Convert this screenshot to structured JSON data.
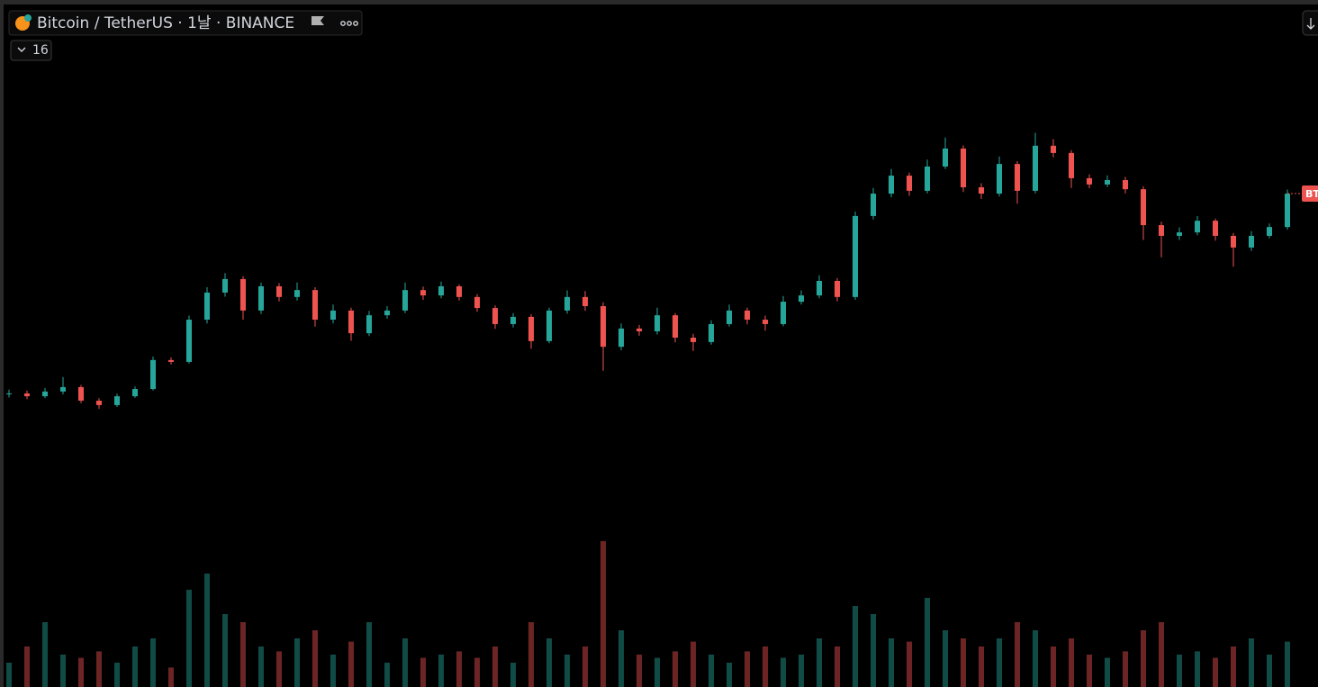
{
  "header": {
    "title": "Bitcoin / TetherUS · 1날 · BINANCE",
    "indicator_count": "16",
    "price_tag": "BT"
  },
  "chart_data": {
    "type": "candlestick",
    "up_color": "#26a69a",
    "down_color": "#ef5350",
    "ylim": [
      0,
      100
    ],
    "volume_ylim": [
      0,
      100
    ],
    "open": [
      12.0,
      12.3,
      11.4,
      12.9,
      14.3,
      10,
      8.6,
      11.4,
      13.7,
      22.9,
      22.3,
      35.7,
      44.3,
      48.6,
      38.6,
      46.3,
      42.9,
      45.1,
      35.7,
      38.6,
      31.4,
      37.1,
      38.6,
      45.1,
      43.4,
      46.3,
      42.9,
      39.4,
      34.3,
      36.6,
      28.9,
      38.6,
      42.9,
      40,
      27.1,
      32.9,
      32,
      37.1,
      30,
      28.6,
      34.3,
      38.6,
      35.7,
      34.3,
      41.4,
      43.4,
      48,
      42.9,
      68.6,
      75.7,
      81.4,
      76.6,
      84.3,
      90,
      77.7,
      75.7,
      85.1,
      76.6,
      90.9,
      88.6,
      80.6,
      78.6,
      80,
      77.1,
      65.7,
      62.3,
      63.4,
      67.1,
      62.3,
      58.6,
      62.3,
      65.1
    ],
    "high": [
      13.5,
      13.2,
      14,
      17.5,
      15,
      10.8,
      12.2,
      14.5,
      24,
      23.8,
      37,
      46,
      50.5,
      49.5,
      47.5,
      47.3,
      47.5,
      46,
      40.5,
      39.5,
      38.5,
      40,
      47.5,
      46.2,
      47.8,
      46.9,
      43.8,
      40.2,
      37.8,
      37.4,
      39.5,
      45,
      44.8,
      41.2,
      34.5,
      34,
      39.5,
      37.8,
      31.2,
      35.5,
      40.5,
      39.5,
      37,
      43.2,
      45,
      49.8,
      48.9,
      70,
      77.5,
      83.5,
      82.4,
      86.5,
      93.5,
      91,
      79,
      87.5,
      86,
      95,
      93,
      89.5,
      81.8,
      81.5,
      81,
      78,
      66.8,
      65,
      68.6,
      67.8,
      63.2,
      63.8,
      66.2,
      77
    ],
    "low": [
      11,
      10.5,
      10.8,
      12,
      9.2,
      7.4,
      8,
      10.9,
      13.2,
      21.5,
      21.8,
      34.5,
      43,
      35.7,
      37.5,
      41.5,
      41.8,
      33.5,
      34.5,
      29,
      30.5,
      36,
      37.8,
      42,
      42.5,
      41.8,
      38.2,
      32.8,
      33.2,
      26.5,
      28.2,
      37.6,
      38.5,
      19.5,
      26,
      30.6,
      31,
      28.5,
      25.8,
      27.8,
      33.5,
      34.2,
      32.2,
      33.6,
      40.5,
      42.5,
      41.5,
      42,
      67.5,
      74.5,
      75,
      75.8,
      83.5,
      76.2,
      74,
      74.8,
      72.5,
      75.8,
      87.2,
      77.5,
      77.4,
      77.8,
      75.8,
      61,
      55.5,
      61,
      62.5,
      60.8,
      52.5,
      57.5,
      61.5,
      64.3
    ],
    "close": [
      12.3,
      11.4,
      12.9,
      14.3,
      10,
      8.6,
      11.4,
      13.7,
      22.9,
      22.3,
      35.7,
      44.3,
      48.6,
      38.6,
      46.3,
      42.9,
      45.1,
      35.7,
      38.6,
      31.4,
      37.1,
      38.6,
      45.1,
      43.4,
      46.3,
      42.9,
      39.4,
      34.3,
      36.6,
      28.9,
      38.6,
      42.9,
      40,
      27.1,
      32.9,
      32,
      37.1,
      30,
      28.6,
      34.3,
      38.6,
      35.7,
      34.3,
      41.4,
      43.4,
      48,
      42.9,
      68.6,
      75.7,
      81.4,
      76.6,
      84.3,
      90,
      77.7,
      75.7,
      85.1,
      76.6,
      90.9,
      88.6,
      80.6,
      78.6,
      80,
      77.1,
      65.7,
      62.3,
      63.4,
      67.1,
      62.3,
      58.6,
      62.3,
      65.1,
      75.7
    ],
    "volume": [
      15,
      25,
      40,
      20,
      18,
      22,
      15,
      25,
      30,
      12,
      60,
      70,
      45,
      40,
      25,
      22,
      30,
      35,
      20,
      28,
      40,
      15,
      30,
      18,
      20,
      22,
      18,
      25,
      15,
      40,
      30,
      20,
      25,
      90,
      35,
      20,
      18,
      22,
      28,
      20,
      15,
      22,
      25,
      18,
      20,
      30,
      25,
      50,
      45,
      30,
      28,
      55,
      35,
      30,
      25,
      30,
      40,
      35,
      25,
      30,
      20,
      18,
      22,
      35,
      40,
      20,
      22,
      18,
      25,
      30,
      20,
      28
    ]
  }
}
